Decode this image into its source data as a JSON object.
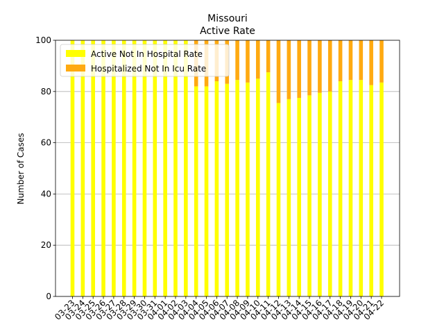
{
  "chart_data": {
    "type": "bar",
    "stacked": true,
    "title": "Missouri",
    "subtitle": "Active Rate",
    "xlabel": "",
    "ylabel": "Number of Cases",
    "ylim": [
      0,
      100
    ],
    "yticks": [
      0,
      20,
      40,
      60,
      80,
      100
    ],
    "grid": "y",
    "legend_position": "top-left",
    "categories": [
      "03-23",
      "03-24",
      "03-25",
      "03-26",
      "03-27",
      "03-28",
      "03-29",
      "03-30",
      "03-31",
      "04-01",
      "04-02",
      "04-03",
      "04-04",
      "04-05",
      "04-06",
      "04-07",
      "04-08",
      "04-09",
      "04-10",
      "04-11",
      "04-12",
      "04-13",
      "04-14",
      "04-15",
      "04-16",
      "04-17",
      "04-18",
      "04-19",
      "04-20",
      "04-21",
      "04-22"
    ],
    "series": [
      {
        "name": "Active Not In Hospital Rate",
        "color": "#ffff00",
        "values": [
          100,
          100,
          100,
          100,
          100,
          100,
          100,
          100,
          100,
          100,
          100,
          100,
          82,
          82,
          84,
          83,
          84.5,
          83.5,
          85,
          87.5,
          75.5,
          77,
          77.5,
          78.5,
          79.5,
          80,
          84,
          84.5,
          84.5,
          82.5,
          83.5
        ]
      },
      {
        "name": "Hospitalized Not In Icu Rate",
        "color": "#ffaa11",
        "values": [
          0,
          0,
          0,
          0,
          0,
          0,
          0,
          0,
          0,
          0,
          0,
          0,
          18,
          18,
          16,
          17,
          15.5,
          16.5,
          15,
          12.5,
          24.5,
          23,
          22.5,
          21.5,
          20.5,
          20,
          16,
          15.5,
          15.5,
          17.5,
          16.5
        ]
      }
    ]
  }
}
